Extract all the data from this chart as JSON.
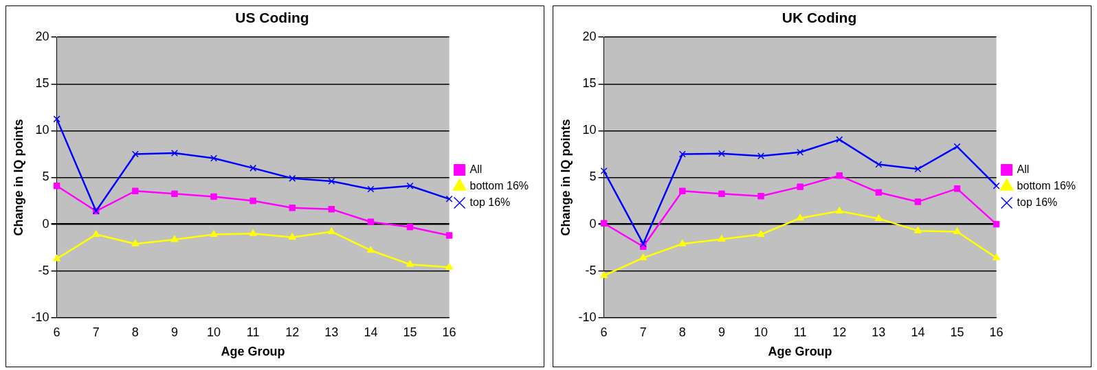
{
  "chart_data": [
    {
      "type": "line",
      "title": "US Coding",
      "xlabel": "Age Group",
      "ylabel": "Change in IQ points",
      "categories": [
        "6",
        "7",
        "8",
        "9",
        "10",
        "11",
        "12",
        "13",
        "14",
        "15",
        "16"
      ],
      "ylim": [
        -10,
        20
      ],
      "yticks": [
        -10,
        -5,
        0,
        5,
        10,
        15,
        20
      ],
      "grid": "y",
      "legend": "right",
      "series": [
        {
          "name": "All",
          "color": "#ff00ff",
          "marker": "square",
          "values": [
            4.1,
            1.4,
            3.55,
            3.25,
            2.95,
            2.5,
            1.75,
            1.6,
            0.25,
            -0.3,
            -1.2
          ]
        },
        {
          "name": "bottom 16%",
          "color": "#ffff00",
          "marker": "triangle",
          "values": [
            -3.7,
            -1.1,
            -2.1,
            -1.65,
            -1.1,
            -1.0,
            -1.4,
            -0.8,
            -2.8,
            -4.3,
            -4.6
          ]
        },
        {
          "name": "top 16%",
          "color": "#0000ff",
          "marker": "cross",
          "values": [
            11.25,
            1.4,
            7.5,
            7.6,
            7.05,
            6.0,
            4.9,
            4.6,
            3.75,
            4.1,
            2.7
          ]
        }
      ]
    },
    {
      "type": "line",
      "title": "UK Coding",
      "xlabel": "Age Group",
      "ylabel": "Change in IQ points",
      "categories": [
        "6",
        "7",
        "8",
        "9",
        "10",
        "11",
        "12",
        "13",
        "14",
        "15",
        "16"
      ],
      "ylim": [
        -10,
        20
      ],
      "yticks": [
        -10,
        -5,
        0,
        5,
        10,
        15,
        20
      ],
      "grid": "y",
      "legend": "right",
      "series": [
        {
          "name": "All",
          "color": "#ff00ff",
          "marker": "square",
          "values": [
            0.1,
            -2.4,
            3.55,
            3.25,
            3.0,
            4.0,
            5.2,
            3.4,
            2.4,
            3.8,
            0.0
          ]
        },
        {
          "name": "bottom 16%",
          "color": "#ffff00",
          "marker": "triangle",
          "values": [
            -5.5,
            -3.6,
            -2.1,
            -1.6,
            -1.1,
            0.65,
            1.4,
            0.6,
            -0.7,
            -0.8,
            -3.6
          ]
        },
        {
          "name": "top 16%",
          "color": "#0000ff",
          "marker": "cross",
          "values": [
            5.7,
            -2.1,
            7.5,
            7.55,
            7.3,
            7.7,
            9.05,
            6.4,
            5.9,
            8.3,
            4.1
          ]
        }
      ]
    }
  ]
}
